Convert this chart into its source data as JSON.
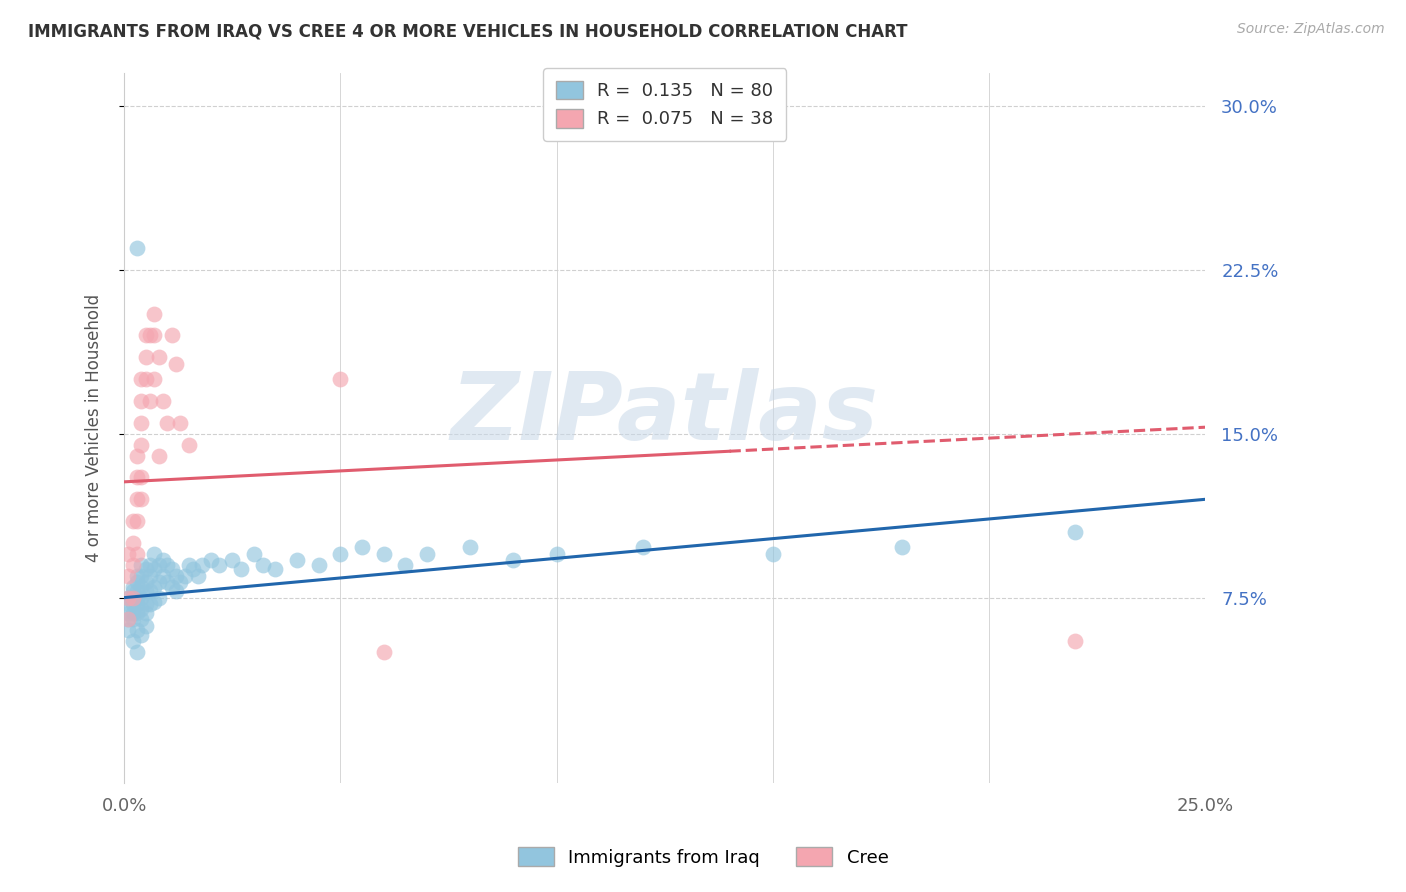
{
  "title": "IMMIGRANTS FROM IRAQ VS CREE 4 OR MORE VEHICLES IN HOUSEHOLD CORRELATION CHART",
  "source": "Source: ZipAtlas.com",
  "ylabel": "4 or more Vehicles in Household",
  "legend_label1": "Immigrants from Iraq",
  "legend_label2": "Cree",
  "R1": 0.135,
  "N1": 80,
  "R2": 0.075,
  "N2": 38,
  "color1": "#92c5de",
  "color2": "#f4a6b0",
  "trendline_color1": "#2166ac",
  "trendline_color2": "#e05c6e",
  "xmin": 0.0,
  "xmax": 0.25,
  "ymin": -0.01,
  "ymax": 0.315,
  "yticks": [
    0.075,
    0.15,
    0.225,
    0.3
  ],
  "ytick_labels": [
    "7.5%",
    "15.0%",
    "22.5%",
    "30.0%"
  ],
  "watermark": "ZIPatlas",
  "trendline1_x0": 0.0,
  "trendline1_x1": 0.25,
  "trendline1_y0": 0.075,
  "trendline1_y1": 0.12,
  "trendline2_x0": 0.0,
  "trendline2_x1": 0.25,
  "trendline2_y0": 0.128,
  "trendline2_y1": 0.153,
  "trendline2_solid_end": 0.14,
  "background_color": "#ffffff",
  "grid_color": "#d0d0d0",
  "scatter1_x": [
    0.001,
    0.001,
    0.001,
    0.001,
    0.001,
    0.002,
    0.002,
    0.002,
    0.002,
    0.002,
    0.002,
    0.002,
    0.003,
    0.003,
    0.003,
    0.003,
    0.003,
    0.003,
    0.003,
    0.003,
    0.004,
    0.004,
    0.004,
    0.004,
    0.004,
    0.004,
    0.004,
    0.005,
    0.005,
    0.005,
    0.005,
    0.005,
    0.005,
    0.006,
    0.006,
    0.006,
    0.006,
    0.007,
    0.007,
    0.007,
    0.007,
    0.008,
    0.008,
    0.008,
    0.009,
    0.009,
    0.01,
    0.01,
    0.011,
    0.011,
    0.012,
    0.012,
    0.013,
    0.014,
    0.015,
    0.016,
    0.017,
    0.018,
    0.02,
    0.022,
    0.025,
    0.027,
    0.03,
    0.032,
    0.035,
    0.04,
    0.045,
    0.05,
    0.055,
    0.06,
    0.065,
    0.07,
    0.08,
    0.09,
    0.1,
    0.12,
    0.15,
    0.18,
    0.22,
    0.003
  ],
  "scatter1_y": [
    0.075,
    0.072,
    0.068,
    0.065,
    0.06,
    0.08,
    0.078,
    0.075,
    0.072,
    0.068,
    0.065,
    0.055,
    0.085,
    0.082,
    0.078,
    0.075,
    0.072,
    0.068,
    0.06,
    0.05,
    0.09,
    0.085,
    0.08,
    0.075,
    0.07,
    0.065,
    0.058,
    0.088,
    0.082,
    0.078,
    0.072,
    0.068,
    0.062,
    0.09,
    0.085,
    0.078,
    0.072,
    0.095,
    0.088,
    0.08,
    0.073,
    0.09,
    0.082,
    0.075,
    0.092,
    0.085,
    0.09,
    0.082,
    0.088,
    0.08,
    0.085,
    0.078,
    0.082,
    0.085,
    0.09,
    0.088,
    0.085,
    0.09,
    0.092,
    0.09,
    0.092,
    0.088,
    0.095,
    0.09,
    0.088,
    0.092,
    0.09,
    0.095,
    0.098,
    0.095,
    0.09,
    0.095,
    0.098,
    0.092,
    0.095,
    0.098,
    0.095,
    0.098,
    0.105,
    0.235
  ],
  "scatter2_x": [
    0.001,
    0.001,
    0.001,
    0.001,
    0.002,
    0.002,
    0.002,
    0.002,
    0.003,
    0.003,
    0.003,
    0.003,
    0.003,
    0.004,
    0.004,
    0.004,
    0.004,
    0.004,
    0.004,
    0.005,
    0.005,
    0.005,
    0.006,
    0.006,
    0.007,
    0.007,
    0.007,
    0.008,
    0.008,
    0.009,
    0.01,
    0.011,
    0.012,
    0.013,
    0.015,
    0.05,
    0.06,
    0.22
  ],
  "scatter2_y": [
    0.095,
    0.085,
    0.075,
    0.065,
    0.11,
    0.1,
    0.09,
    0.075,
    0.14,
    0.13,
    0.12,
    0.11,
    0.095,
    0.175,
    0.165,
    0.155,
    0.145,
    0.13,
    0.12,
    0.195,
    0.185,
    0.175,
    0.195,
    0.165,
    0.205,
    0.195,
    0.175,
    0.185,
    0.14,
    0.165,
    0.155,
    0.195,
    0.182,
    0.155,
    0.145,
    0.175,
    0.05,
    0.055
  ]
}
